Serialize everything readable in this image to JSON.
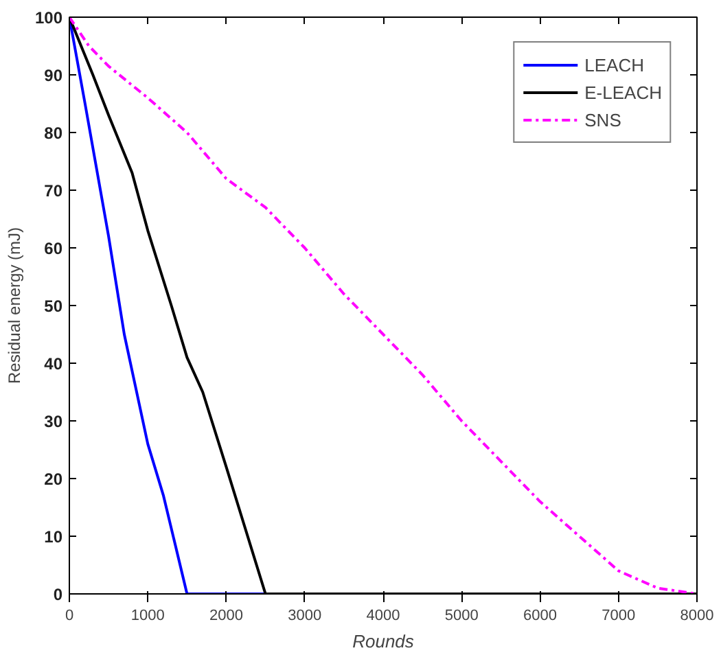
{
  "chart_data": {
    "type": "line",
    "xlabel": "Rounds",
    "ylabel": "Residual energy (mJ)",
    "xlim": [
      0,
      8000
    ],
    "ylim": [
      0,
      100
    ],
    "xticks": [
      0,
      1000,
      2000,
      3000,
      4000,
      5000,
      6000,
      7000,
      8000
    ],
    "yticks": [
      0,
      10,
      20,
      30,
      40,
      50,
      60,
      70,
      80,
      90,
      100
    ],
    "grid": false,
    "legend": "top right",
    "series": [
      {
        "name": "LEACH",
        "color": "#0000ff",
        "line_style": "solid",
        "x": [
          0,
          200,
          500,
          700,
          1000,
          1200,
          1500,
          2500
        ],
        "values": [
          100,
          85,
          62,
          45,
          26,
          17,
          0,
          0
        ]
      },
      {
        "name": "E-LEACH",
        "color": "#000000",
        "line_style": "solid",
        "x": [
          0,
          300,
          500,
          800,
          1000,
          1300,
          1500,
          1700,
          2000,
          2500,
          8000
        ],
        "values": [
          100,
          90,
          83,
          73,
          63,
          50,
          41,
          35,
          22,
          0,
          0
        ]
      },
      {
        "name": "SNS",
        "color": "#ff00ff",
        "line_style": "dashdot",
        "x": [
          0,
          250,
          500,
          1000,
          1500,
          2000,
          2500,
          3000,
          3500,
          4000,
          4500,
          5000,
          5500,
          6000,
          6500,
          7000,
          7500,
          8000
        ],
        "values": [
          100,
          95,
          91.5,
          86,
          80,
          72,
          67,
          60,
          52,
          45,
          38,
          30,
          23,
          16,
          10,
          4,
          1,
          0
        ]
      }
    ]
  }
}
